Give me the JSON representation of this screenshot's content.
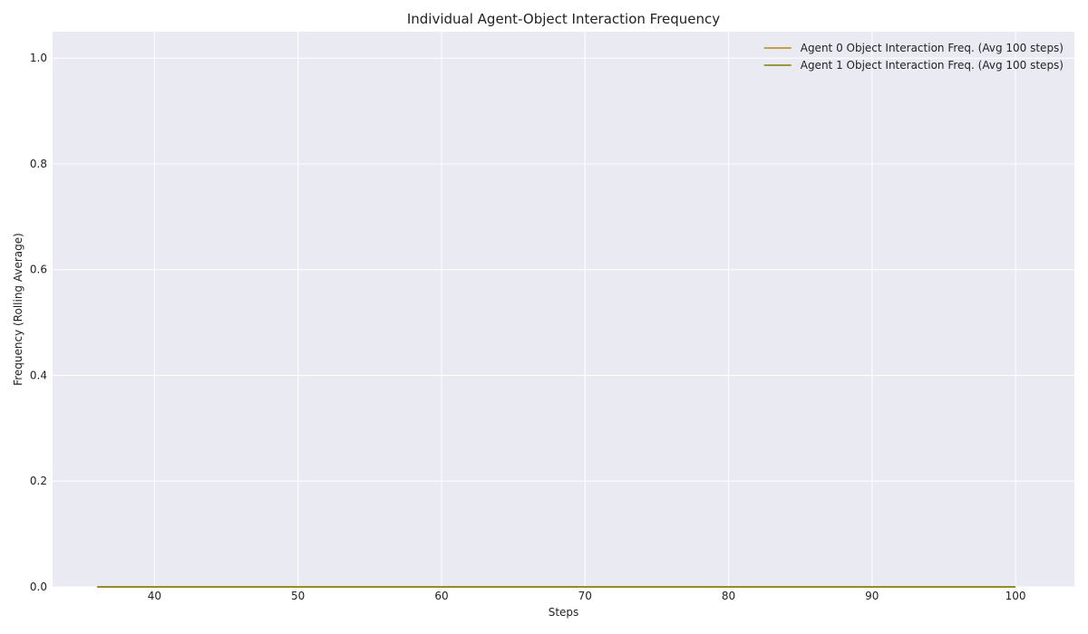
{
  "chart_data": {
    "type": "line",
    "title": "Individual Agent-Object Interaction Frequency",
    "xlabel": "Steps",
    "ylabel": "Frequency (Rolling Average)",
    "xlim": [
      32.9,
      104.1
    ],
    "ylim": [
      0.0,
      1.05
    ],
    "x_ticks": [
      40,
      50,
      60,
      70,
      80,
      90,
      100
    ],
    "y_ticks": [
      0.0,
      0.2,
      0.4,
      0.6,
      0.8,
      1.0
    ],
    "grid": true,
    "legend_position": "top-right",
    "series": [
      {
        "name": "Agent 0 Object Interaction Freq. (Avg 100 steps)",
        "color": "#b8860b",
        "x": [
          36,
          100
        ],
        "y": [
          0.0,
          0.0
        ]
      },
      {
        "name": "Agent 1 Object Interaction Freq. (Avg 100 steps)",
        "color": "#808000",
        "x": [
          36,
          100
        ],
        "y": [
          0.0,
          0.0
        ]
      }
    ],
    "colors": {
      "background": "#eaeaf2",
      "grid": "#ffffff"
    }
  }
}
